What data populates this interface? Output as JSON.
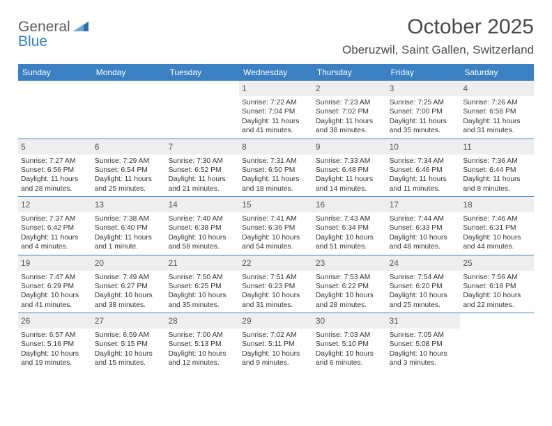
{
  "logo": {
    "word1": "General",
    "word2": "Blue"
  },
  "title": "October 2025",
  "location": "Oberuzwil, Saint Gallen, Switzerland",
  "colors": {
    "header_bg": "#3a80c3",
    "header_text": "#ffffff",
    "daynum_bg": "#eeeeee",
    "week_border": "#3a80c3",
    "text": "#333333",
    "logo_gray": "#5d5d5d",
    "logo_blue": "#3a80c3"
  },
  "daynames": [
    "Sunday",
    "Monday",
    "Tuesday",
    "Wednesday",
    "Thursday",
    "Friday",
    "Saturday"
  ],
  "weeks": [
    [
      {
        "empty": true
      },
      {
        "empty": true
      },
      {
        "empty": true
      },
      {
        "day": "1",
        "sunrise": "Sunrise: 7:22 AM",
        "sunset": "Sunset: 7:04 PM",
        "daylight": "Daylight: 11 hours and 41 minutes."
      },
      {
        "day": "2",
        "sunrise": "Sunrise: 7:23 AM",
        "sunset": "Sunset: 7:02 PM",
        "daylight": "Daylight: 11 hours and 38 minutes."
      },
      {
        "day": "3",
        "sunrise": "Sunrise: 7:25 AM",
        "sunset": "Sunset: 7:00 PM",
        "daylight": "Daylight: 11 hours and 35 minutes."
      },
      {
        "day": "4",
        "sunrise": "Sunrise: 7:26 AM",
        "sunset": "Sunset: 6:58 PM",
        "daylight": "Daylight: 11 hours and 31 minutes."
      }
    ],
    [
      {
        "day": "5",
        "sunrise": "Sunrise: 7:27 AM",
        "sunset": "Sunset: 6:56 PM",
        "daylight": "Daylight: 11 hours and 28 minutes."
      },
      {
        "day": "6",
        "sunrise": "Sunrise: 7:29 AM",
        "sunset": "Sunset: 6:54 PM",
        "daylight": "Daylight: 11 hours and 25 minutes."
      },
      {
        "day": "7",
        "sunrise": "Sunrise: 7:30 AM",
        "sunset": "Sunset: 6:52 PM",
        "daylight": "Daylight: 11 hours and 21 minutes."
      },
      {
        "day": "8",
        "sunrise": "Sunrise: 7:31 AM",
        "sunset": "Sunset: 6:50 PM",
        "daylight": "Daylight: 11 hours and 18 minutes."
      },
      {
        "day": "9",
        "sunrise": "Sunrise: 7:33 AM",
        "sunset": "Sunset: 6:48 PM",
        "daylight": "Daylight: 11 hours and 14 minutes."
      },
      {
        "day": "10",
        "sunrise": "Sunrise: 7:34 AM",
        "sunset": "Sunset: 6:46 PM",
        "daylight": "Daylight: 11 hours and 11 minutes."
      },
      {
        "day": "11",
        "sunrise": "Sunrise: 7:36 AM",
        "sunset": "Sunset: 6:44 PM",
        "daylight": "Daylight: 11 hours and 8 minutes."
      }
    ],
    [
      {
        "day": "12",
        "sunrise": "Sunrise: 7:37 AM",
        "sunset": "Sunset: 6:42 PM",
        "daylight": "Daylight: 11 hours and 4 minutes."
      },
      {
        "day": "13",
        "sunrise": "Sunrise: 7:38 AM",
        "sunset": "Sunset: 6:40 PM",
        "daylight": "Daylight: 11 hours and 1 minute."
      },
      {
        "day": "14",
        "sunrise": "Sunrise: 7:40 AM",
        "sunset": "Sunset: 6:38 PM",
        "daylight": "Daylight: 10 hours and 58 minutes."
      },
      {
        "day": "15",
        "sunrise": "Sunrise: 7:41 AM",
        "sunset": "Sunset: 6:36 PM",
        "daylight": "Daylight: 10 hours and 54 minutes."
      },
      {
        "day": "16",
        "sunrise": "Sunrise: 7:43 AM",
        "sunset": "Sunset: 6:34 PM",
        "daylight": "Daylight: 10 hours and 51 minutes."
      },
      {
        "day": "17",
        "sunrise": "Sunrise: 7:44 AM",
        "sunset": "Sunset: 6:33 PM",
        "daylight": "Daylight: 10 hours and 48 minutes."
      },
      {
        "day": "18",
        "sunrise": "Sunrise: 7:46 AM",
        "sunset": "Sunset: 6:31 PM",
        "daylight": "Daylight: 10 hours and 44 minutes."
      }
    ],
    [
      {
        "day": "19",
        "sunrise": "Sunrise: 7:47 AM",
        "sunset": "Sunset: 6:29 PM",
        "daylight": "Daylight: 10 hours and 41 minutes."
      },
      {
        "day": "20",
        "sunrise": "Sunrise: 7:49 AM",
        "sunset": "Sunset: 6:27 PM",
        "daylight": "Daylight: 10 hours and 38 minutes."
      },
      {
        "day": "21",
        "sunrise": "Sunrise: 7:50 AM",
        "sunset": "Sunset: 6:25 PM",
        "daylight": "Daylight: 10 hours and 35 minutes."
      },
      {
        "day": "22",
        "sunrise": "Sunrise: 7:51 AM",
        "sunset": "Sunset: 6:23 PM",
        "daylight": "Daylight: 10 hours and 31 minutes."
      },
      {
        "day": "23",
        "sunrise": "Sunrise: 7:53 AM",
        "sunset": "Sunset: 6:22 PM",
        "daylight": "Daylight: 10 hours and 28 minutes."
      },
      {
        "day": "24",
        "sunrise": "Sunrise: 7:54 AM",
        "sunset": "Sunset: 6:20 PM",
        "daylight": "Daylight: 10 hours and 25 minutes."
      },
      {
        "day": "25",
        "sunrise": "Sunrise: 7:56 AM",
        "sunset": "Sunset: 6:18 PM",
        "daylight": "Daylight: 10 hours and 22 minutes."
      }
    ],
    [
      {
        "day": "26",
        "sunrise": "Sunrise: 6:57 AM",
        "sunset": "Sunset: 5:16 PM",
        "daylight": "Daylight: 10 hours and 19 minutes."
      },
      {
        "day": "27",
        "sunrise": "Sunrise: 6:59 AM",
        "sunset": "Sunset: 5:15 PM",
        "daylight": "Daylight: 10 hours and 15 minutes."
      },
      {
        "day": "28",
        "sunrise": "Sunrise: 7:00 AM",
        "sunset": "Sunset: 5:13 PM",
        "daylight": "Daylight: 10 hours and 12 minutes."
      },
      {
        "day": "29",
        "sunrise": "Sunrise: 7:02 AM",
        "sunset": "Sunset: 5:11 PM",
        "daylight": "Daylight: 10 hours and 9 minutes."
      },
      {
        "day": "30",
        "sunrise": "Sunrise: 7:03 AM",
        "sunset": "Sunset: 5:10 PM",
        "daylight": "Daylight: 10 hours and 6 minutes."
      },
      {
        "day": "31",
        "sunrise": "Sunrise: 7:05 AM",
        "sunset": "Sunset: 5:08 PM",
        "daylight": "Daylight: 10 hours and 3 minutes."
      },
      {
        "empty": true
      }
    ]
  ]
}
